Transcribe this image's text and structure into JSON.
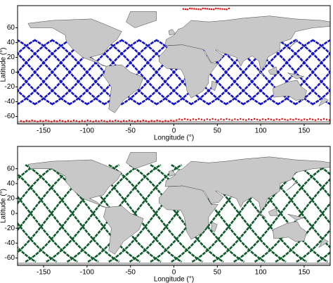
{
  "panels": [
    {
      "xlabel": "Longitude (°)",
      "ylabel": "Latitude (°)",
      "xlim": [
        -180,
        180
      ],
      "ylim": [
        -70,
        90
      ],
      "xticks": [
        -150,
        -100,
        -50,
        0,
        50,
        100,
        150
      ],
      "yticks": [
        -60,
        -40,
        -20,
        0,
        20,
        40,
        60
      ]
    },
    {
      "xlabel": "Longitude (°)",
      "ylabel": "Latitude (°)",
      "xlim": [
        -180,
        180
      ],
      "ylim": [
        -70,
        90
      ],
      "xticks": [
        -150,
        -100,
        -50,
        0,
        50,
        100,
        150
      ],
      "yticks": [
        -60,
        -40,
        -20,
        0,
        20,
        40,
        60
      ]
    }
  ]
}
